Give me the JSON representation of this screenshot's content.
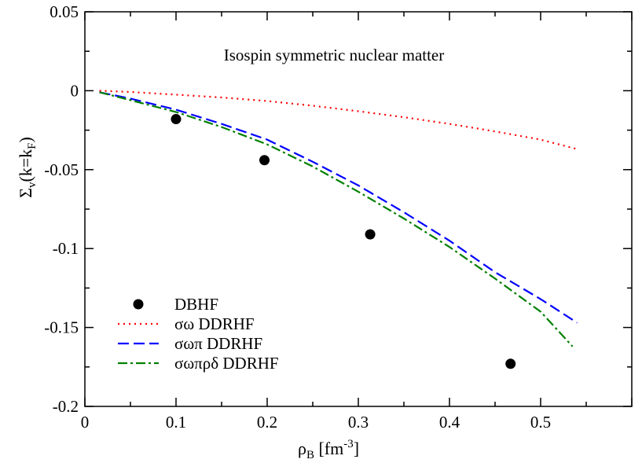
{
  "chart_data": {
    "type": "line",
    "annotation": "Isospin symmetric nuclear matter",
    "xlabel": {
      "main": "ρ",
      "sub": "B",
      "unit_pre": " [fm",
      "unit_sup": "-3",
      "unit_post": "]"
    },
    "ylabel": {
      "main": "Σ",
      "sub1": "v",
      "mid": "(k=k",
      "sub2": "F",
      "end": ")"
    },
    "xlim": [
      0,
      0.6
    ],
    "ylim": [
      -0.2,
      0.05
    ],
    "x_ticks": [
      0,
      0.1,
      0.2,
      0.3,
      0.4,
      0.5
    ],
    "x_tick_labels": [
      "0",
      "0.1",
      "0.2",
      "0.3",
      "0.4",
      "0.5"
    ],
    "y_ticks": [
      -0.2,
      -0.15,
      -0.1,
      -0.05,
      0,
      0.05
    ],
    "y_tick_labels": [
      "-0.2",
      "-0.15",
      "-0.1",
      "-0.05",
      "0",
      "0.05"
    ],
    "grid": false,
    "legend_position": "bottom-left",
    "points": {
      "name": "DBHF",
      "color": "#000000",
      "x": [
        0.1,
        0.197,
        0.313,
        0.467
      ],
      "y": [
        -0.018,
        -0.044,
        -0.091,
        -0.173
      ]
    },
    "series": [
      {
        "name": "σω DDRHF",
        "color": "#ff0000",
        "dash": "dotted",
        "x": [
          0.016,
          0.05,
          0.1,
          0.15,
          0.2,
          0.25,
          0.3,
          0.35,
          0.4,
          0.45,
          0.5,
          0.54
        ],
        "y": [
          0.0,
          -0.0008,
          -0.0025,
          -0.0043,
          -0.0065,
          -0.0095,
          -0.013,
          -0.0168,
          -0.021,
          -0.0258,
          -0.031,
          -0.037
        ]
      },
      {
        "name": "σωπ DDRHF",
        "color": "#0000ff",
        "dash": "dashed",
        "x": [
          0.016,
          0.05,
          0.1,
          0.15,
          0.2,
          0.25,
          0.3,
          0.35,
          0.4,
          0.45,
          0.5,
          0.54
        ],
        "y": [
          -0.001,
          -0.005,
          -0.012,
          -0.021,
          -0.031,
          -0.045,
          -0.06,
          -0.077,
          -0.095,
          -0.115,
          -0.132,
          -0.147
        ]
      },
      {
        "name": "σωπρδ DDRHF",
        "color": "#008000",
        "dash": "dash-dot",
        "x": [
          0.016,
          0.05,
          0.1,
          0.15,
          0.2,
          0.25,
          0.3,
          0.35,
          0.4,
          0.45,
          0.5,
          0.535
        ],
        "y": [
          -0.001,
          -0.006,
          -0.0135,
          -0.023,
          -0.034,
          -0.048,
          -0.064,
          -0.081,
          -0.099,
          -0.119,
          -0.14,
          -0.162
        ]
      }
    ]
  }
}
